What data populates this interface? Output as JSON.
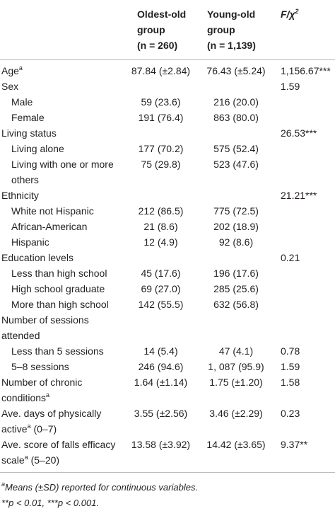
{
  "table": {
    "header": [
      [
        "Oldest-old",
        "group",
        "(n = 260)"
      ],
      [
        "Young-old",
        "group",
        "(n = 1,139)"
      ],
      [
        [
          "F/χ",
          {
            "sup": "2"
          }
        ]
      ]
    ],
    "rows": [
      {
        "label": [
          "Age",
          {
            "sup": "a"
          }
        ],
        "indent": false,
        "cells": [
          "87.84 (±2.84)",
          "76.43 (±5.24)",
          "1,156.67***"
        ]
      },
      {
        "label": [
          "Sex"
        ],
        "indent": false,
        "cells": [
          null,
          null,
          "1.59"
        ]
      },
      {
        "label": [
          "Male"
        ],
        "indent": true,
        "cells": [
          "59 (23.6)",
          "216 (20.0)",
          null
        ]
      },
      {
        "label": [
          "Female"
        ],
        "indent": true,
        "cells": [
          "191 (76.4)",
          "863 (80.0)",
          null
        ]
      },
      {
        "label": [
          "Living status"
        ],
        "indent": false,
        "cells": [
          null,
          null,
          "26.53***"
        ]
      },
      {
        "label": [
          "Living alone"
        ],
        "indent": true,
        "cells": [
          "177 (70.2)",
          "575 (52.4)",
          null
        ]
      },
      {
        "label": [
          "Living with one or more others"
        ],
        "indent": true,
        "cells": [
          "75 (29.8)",
          "523 (47.6)",
          null
        ]
      },
      {
        "label": [
          "Ethnicity"
        ],
        "indent": false,
        "cells": [
          null,
          null,
          "21.21***"
        ]
      },
      {
        "label": [
          "White not Hispanic"
        ],
        "indent": true,
        "cells": [
          "212 (86.5)",
          "775 (72.5)",
          null
        ]
      },
      {
        "label": [
          "African-American"
        ],
        "indent": true,
        "cells": [
          "21 (8.6)",
          "202 (18.9)",
          null
        ]
      },
      {
        "label": [
          "Hispanic"
        ],
        "indent": true,
        "cells": [
          "12 (4.9)",
          "92 (8.6)",
          null
        ]
      },
      {
        "label": [
          "Education levels"
        ],
        "indent": false,
        "cells": [
          null,
          null,
          "0.21"
        ]
      },
      {
        "label": [
          "Less than high school"
        ],
        "indent": true,
        "cells": [
          "45 (17.6)",
          "196 (17.6)",
          null
        ]
      },
      {
        "label": [
          "High school graduate"
        ],
        "indent": true,
        "cells": [
          "69 (27.0)",
          "285 (25.6)",
          null
        ]
      },
      {
        "label": [
          "More than high school"
        ],
        "indent": true,
        "cells": [
          "142 (55.5)",
          "632 (56.8)",
          null
        ]
      },
      {
        "label": [
          "Number of sessions attended"
        ],
        "indent": false,
        "cells": [
          null,
          null,
          null
        ]
      },
      {
        "label": [
          "Less than 5 sessions"
        ],
        "indent": true,
        "cells": [
          "14 (5.4)",
          "47 (4.1)",
          "0.78"
        ]
      },
      {
        "label": [
          "5–8 sessions"
        ],
        "indent": true,
        "cells": [
          "246 (94.6)",
          "1, 087 (95.9)",
          "1.59"
        ]
      },
      {
        "label": [
          "Number of chronic conditions",
          {
            "sup": "a"
          }
        ],
        "indent": false,
        "cells": [
          "1.64 (±1.14)",
          "1.75 (±1.20)",
          "1.58"
        ]
      },
      {
        "label": [
          "Ave. days of physically active",
          {
            "sup": "a"
          },
          " (0–7)"
        ],
        "indent": false,
        "cells": [
          "3.55 (±2.56)",
          "3.46 (±2.29)",
          "0.23"
        ]
      },
      {
        "label": [
          "Ave. score of falls efficacy scale",
          {
            "sup": "a"
          },
          " (5–20)"
        ],
        "indent": false,
        "cells": [
          "13.58 (±3.92)",
          "14.42 (±3.65)",
          "9.37**"
        ]
      }
    ],
    "footnotes": [
      [
        {
          "sup": "a"
        },
        "Means (±SD) reported for continuous variables."
      ],
      [
        "**p < 0.01, ***p < 0.001."
      ]
    ]
  }
}
